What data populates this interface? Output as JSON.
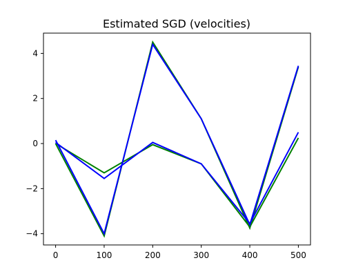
{
  "chart_data": {
    "type": "line",
    "title": "Estimated SGD (velocities)",
    "xlabel": "",
    "ylabel": "",
    "x": [
      0,
      100,
      200,
      300,
      400,
      500
    ],
    "xlim": [
      -25,
      525
    ],
    "ylim": [
      -4.5,
      4.9
    ],
    "xticks": [
      0,
      100,
      200,
      300,
      400,
      500
    ],
    "yticks": [
      -4,
      -2,
      0,
      2,
      4
    ],
    "xtick_labels": [
      "0",
      "100",
      "200",
      "300",
      "400",
      "500"
    ],
    "ytick_labels": [
      "−4",
      "−2",
      "0",
      "2",
      "4"
    ],
    "grid": false,
    "series": [
      {
        "color": "#008000",
        "values": [
          0.0,
          -4.1,
          4.5,
          1.1,
          -3.75,
          3.4
        ]
      },
      {
        "color": "#008000",
        "values": [
          0.0,
          -1.3,
          -0.05,
          -0.9,
          -3.7,
          0.25
        ]
      },
      {
        "color": "#0000ff",
        "values": [
          0.15,
          -4.0,
          4.4,
          1.1,
          -3.6,
          3.45
        ]
      },
      {
        "color": "#0000ff",
        "values": [
          0.05,
          -1.55,
          0.05,
          -0.9,
          -3.55,
          0.5
        ]
      }
    ]
  }
}
